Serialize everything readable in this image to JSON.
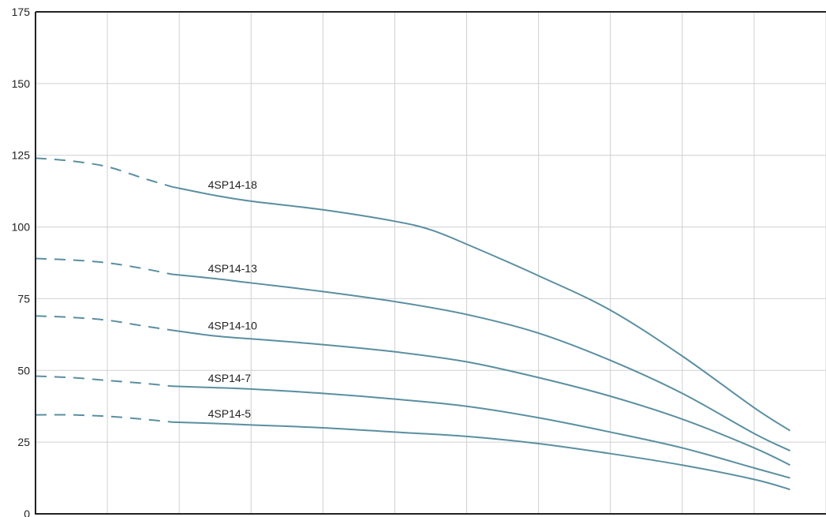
{
  "chart_data": {
    "type": "line",
    "title": "",
    "xlabel": "",
    "ylabel": "",
    "ylim": [
      0,
      175
    ],
    "xlim": [
      0,
      11
    ],
    "x_gridlines": [
      0,
      1,
      2,
      3,
      4,
      5,
      6,
      7,
      8,
      9,
      10,
      11
    ],
    "y_ticks": [
      0,
      25,
      50,
      75,
      100,
      125,
      150,
      175
    ],
    "grid": true,
    "line_color": "#5a8fa0",
    "series": [
      {
        "name": "4SP14-18",
        "dashed_until_x": 1.9,
        "points": [
          [
            0,
            124
          ],
          [
            0.5,
            123
          ],
          [
            1.0,
            121
          ],
          [
            1.5,
            117
          ],
          [
            1.9,
            114
          ],
          [
            2.5,
            111
          ],
          [
            3.0,
            109
          ],
          [
            4.0,
            106
          ],
          [
            5.0,
            102
          ],
          [
            5.5,
            99
          ],
          [
            6.0,
            94
          ],
          [
            7.0,
            83
          ],
          [
            8.0,
            71
          ],
          [
            9.0,
            55
          ],
          [
            10.0,
            37
          ],
          [
            10.5,
            29
          ]
        ]
      },
      {
        "name": "4SP14-13",
        "dashed_until_x": 1.9,
        "points": [
          [
            0,
            89
          ],
          [
            0.5,
            88.5
          ],
          [
            1.0,
            87.5
          ],
          [
            1.5,
            85.5
          ],
          [
            1.9,
            83.5
          ],
          [
            2.5,
            82
          ],
          [
            3.0,
            80.5
          ],
          [
            4.0,
            77.5
          ],
          [
            5.0,
            74
          ],
          [
            6.0,
            69.5
          ],
          [
            7.0,
            63
          ],
          [
            8.0,
            53.5
          ],
          [
            9.0,
            42
          ],
          [
            10.0,
            28
          ],
          [
            10.5,
            22
          ]
        ]
      },
      {
        "name": "4SP14-10",
        "dashed_until_x": 1.9,
        "points": [
          [
            0,
            69
          ],
          [
            0.5,
            68.5
          ],
          [
            1.0,
            67.5
          ],
          [
            1.5,
            65.5
          ],
          [
            1.9,
            64
          ],
          [
            2.5,
            62
          ],
          [
            3.0,
            61
          ],
          [
            4.0,
            59
          ],
          [
            5.0,
            56.5
          ],
          [
            6.0,
            53
          ],
          [
            7.0,
            47.5
          ],
          [
            8.0,
            41
          ],
          [
            9.0,
            33
          ],
          [
            10.0,
            23
          ],
          [
            10.5,
            17
          ]
        ]
      },
      {
        "name": "4SP14-7",
        "dashed_until_x": 1.9,
        "points": [
          [
            0,
            48
          ],
          [
            0.5,
            47.5
          ],
          [
            1.0,
            46.5
          ],
          [
            1.5,
            45.5
          ],
          [
            1.9,
            44.5
          ],
          [
            2.5,
            44
          ],
          [
            3.0,
            43.5
          ],
          [
            4.0,
            42
          ],
          [
            5.0,
            40
          ],
          [
            6.0,
            37.5
          ],
          [
            7.0,
            33.5
          ],
          [
            8.0,
            28.5
          ],
          [
            9.0,
            23
          ],
          [
            10.0,
            16
          ],
          [
            10.5,
            12.5
          ]
        ]
      },
      {
        "name": "4SP14-5",
        "dashed_until_x": 1.9,
        "points": [
          [
            0,
            34.5
          ],
          [
            0.5,
            34.5
          ],
          [
            1.0,
            34
          ],
          [
            1.5,
            33
          ],
          [
            1.9,
            32
          ],
          [
            2.5,
            31.5
          ],
          [
            3.0,
            31
          ],
          [
            4.0,
            30
          ],
          [
            5.0,
            28.5
          ],
          [
            6.0,
            27
          ],
          [
            7.0,
            24.5
          ],
          [
            8.0,
            21
          ],
          [
            9.0,
            17
          ],
          [
            10.0,
            12
          ],
          [
            10.5,
            8.5
          ]
        ]
      }
    ]
  }
}
